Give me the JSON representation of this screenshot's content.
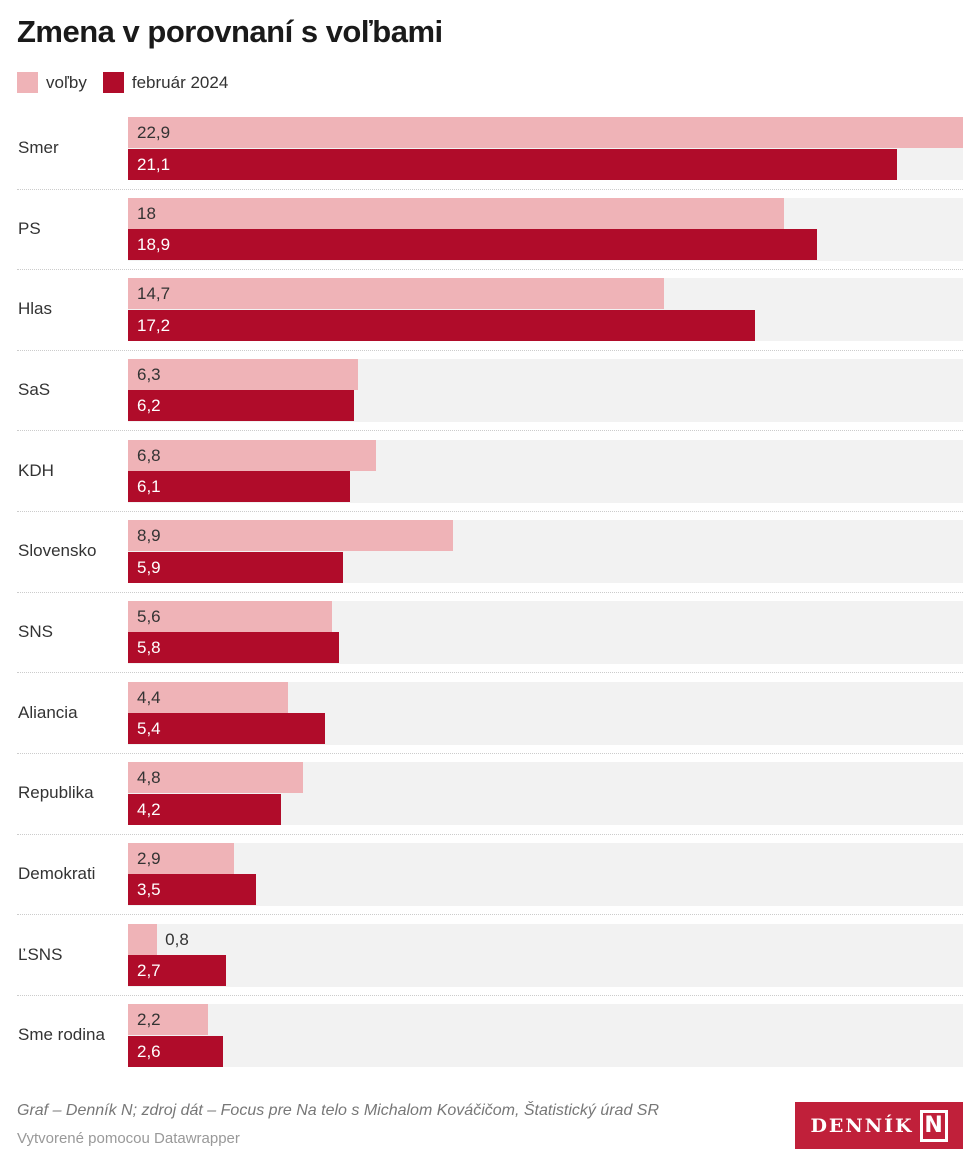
{
  "title": "Zmena v porovnaní s voľbami",
  "chart_data": {
    "type": "bar",
    "orientation": "horizontal-grouped",
    "title": "Zmena v porovnaní s voľbami",
    "categories": [
      "Smer",
      "PS",
      "Hlas",
      "SaS",
      "KDH",
      "Slovensko",
      "SNS",
      "Aliancia",
      "Republika",
      "Demokrati",
      "ĽSNS",
      "Sme rodina"
    ],
    "series": [
      {
        "name": "voľby",
        "color": "#efb3b7",
        "values": [
          22.9,
          18,
          14.7,
          6.3,
          6.8,
          8.9,
          5.6,
          4.4,
          4.8,
          2.9,
          0.8,
          2.2
        ],
        "labels": [
          "22,9",
          "18",
          "14,7",
          "6,3",
          "6,8",
          "8,9",
          "5,6",
          "4,4",
          "4,8",
          "2,9",
          "0,8",
          "2,2"
        ]
      },
      {
        "name": "február 2024",
        "color": "#b00c2a",
        "values": [
          21.1,
          18.9,
          17.2,
          6.2,
          6.1,
          5.9,
          5.8,
          5.4,
          4.2,
          3.5,
          2.7,
          2.6
        ],
        "labels": [
          "21,1",
          "18,9",
          "17,2",
          "6,2",
          "6,1",
          "5,9",
          "5,8",
          "5,4",
          "4,2",
          "3,5",
          "2,7",
          "2,6"
        ]
      }
    ],
    "xlim": [
      0,
      22.9
    ],
    "legend": "top-left"
  },
  "footer": {
    "source": "Graf – Denník N; zdroj dát – Focus pre Na telo s Michalom Kováčičom, Štatistický úrad SR",
    "credit": "Vytvorené pomocou Datawrapper",
    "logo": "DENNÍK N"
  }
}
